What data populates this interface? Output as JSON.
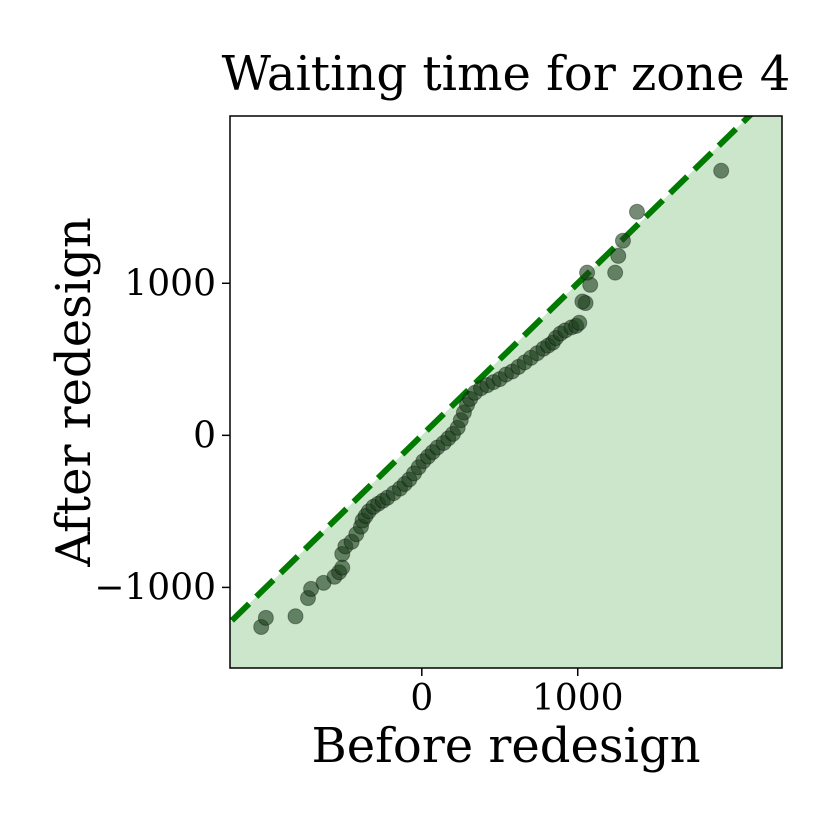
{
  "chart_data": {
    "type": "scatter",
    "title": "Waiting time for zone 4",
    "xlabel": "Before redesign",
    "ylabel": "After redesign",
    "xlim": [
      -1230,
      2310
    ],
    "ylim": [
      -1530,
      2100
    ],
    "xticks": [
      0,
      1000
    ],
    "yticks": [
      -1000,
      0,
      1000
    ],
    "xtick_labels": [
      "0",
      "1000"
    ],
    "ytick_labels": [
      "−1000",
      "0",
      "1000"
    ],
    "reference_line": {
      "style": "dashed",
      "slope": 1,
      "intercept": 0,
      "color": "#007a00"
    },
    "shaded_region": "below y = x",
    "grid": false,
    "colors": {
      "fill": "#cce6cc",
      "line": "#007a00",
      "points": "#1a3d1a"
    },
    "series": [
      {
        "points": [
          [
            -1030,
            -1260
          ],
          [
            -1000,
            -1200
          ],
          [
            -810,
            -1190
          ],
          [
            -730,
            -1070
          ],
          [
            -710,
            -1010
          ],
          [
            -630,
            -970
          ],
          [
            -560,
            -930
          ],
          [
            -530,
            -900
          ],
          [
            -510,
            -870
          ],
          [
            -510,
            -780
          ],
          [
            -490,
            -730
          ],
          [
            -450,
            -700
          ],
          [
            -420,
            -650
          ],
          [
            -390,
            -600
          ],
          [
            -380,
            -560
          ],
          [
            -360,
            -530
          ],
          [
            -340,
            -500
          ],
          [
            -310,
            -470
          ],
          [
            -280,
            -450
          ],
          [
            -250,
            -430
          ],
          [
            -220,
            -410
          ],
          [
            -180,
            -380
          ],
          [
            -140,
            -350
          ],
          [
            -110,
            -320
          ],
          [
            -80,
            -290
          ],
          [
            -50,
            -250
          ],
          [
            -20,
            -210
          ],
          [
            10,
            -170
          ],
          [
            40,
            -140
          ],
          [
            70,
            -110
          ],
          [
            100,
            -80
          ],
          [
            140,
            -50
          ],
          [
            170,
            -20
          ],
          [
            200,
            10
          ],
          [
            230,
            50
          ],
          [
            250,
            100
          ],
          [
            270,
            150
          ],
          [
            290,
            200
          ],
          [
            310,
            240
          ],
          [
            340,
            280
          ],
          [
            380,
            310
          ],
          [
            420,
            330
          ],
          [
            460,
            350
          ],
          [
            500,
            370
          ],
          [
            540,
            400
          ],
          [
            580,
            420
          ],
          [
            620,
            450
          ],
          [
            660,
            480
          ],
          [
            700,
            510
          ],
          [
            740,
            540
          ],
          [
            780,
            570
          ],
          [
            810,
            590
          ],
          [
            840,
            610
          ],
          [
            860,
            640
          ],
          [
            890,
            670
          ],
          [
            920,
            690
          ],
          [
            960,
            710
          ],
          [
            990,
            720
          ],
          [
            1010,
            740
          ],
          [
            1050,
            870
          ],
          [
            1030,
            880
          ],
          [
            1080,
            990
          ],
          [
            1060,
            1070
          ],
          [
            1240,
            1070
          ],
          [
            1260,
            1180
          ],
          [
            1290,
            1280
          ],
          [
            1380,
            1470
          ],
          [
            1920,
            1740
          ]
        ]
      }
    ]
  }
}
